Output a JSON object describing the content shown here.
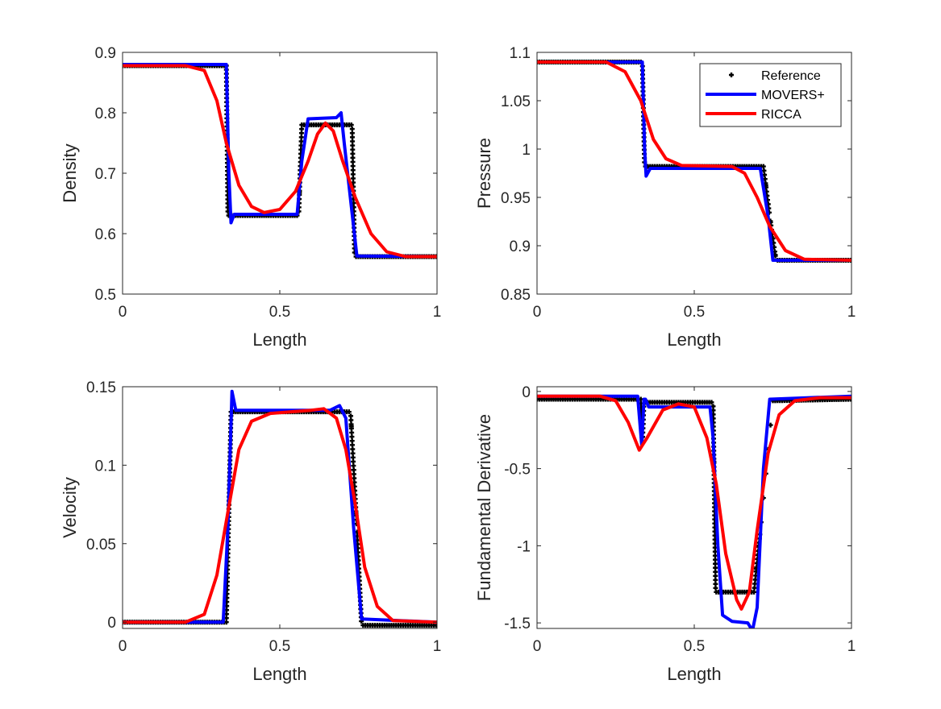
{
  "chart_data": [
    {
      "type": "line",
      "xlabel": "Length",
      "ylabel": "Density",
      "xlim": [
        0,
        1
      ],
      "ylim": [
        0.5,
        0.9
      ],
      "xticks": [
        "0",
        "0.5",
        "1"
      ],
      "xtick_values": [
        0,
        0.5,
        1
      ],
      "yticks": [
        "0.5",
        "0.6",
        "0.7",
        "0.8",
        "0.9"
      ],
      "ytick_values": [
        0.5,
        0.6,
        0.7,
        0.8,
        0.9
      ],
      "series": [
        {
          "name": "Reference",
          "style": "markers",
          "color": "#000000",
          "x": [
            0,
            0.33,
            0.335,
            0.56,
            0.57,
            0.73,
            0.738,
            1
          ],
          "y": [
            0.878,
            0.878,
            0.63,
            0.63,
            0.78,
            0.78,
            0.562,
            0.562
          ]
        },
        {
          "name": "MOVERS+",
          "style": "line",
          "color": "#0000FF",
          "x": [
            0,
            0.33,
            0.338,
            0.345,
            0.355,
            0.555,
            0.57,
            0.59,
            0.68,
            0.695,
            0.705,
            0.745,
            1
          ],
          "y": [
            0.88,
            0.88,
            0.7,
            0.618,
            0.632,
            0.632,
            0.72,
            0.79,
            0.792,
            0.8,
            0.75,
            0.563,
            0.562
          ]
        },
        {
          "name": "RICCA",
          "style": "line",
          "color": "#FF0000",
          "x": [
            0,
            0.2,
            0.26,
            0.3,
            0.33,
            0.37,
            0.41,
            0.45,
            0.5,
            0.55,
            0.59,
            0.62,
            0.645,
            0.67,
            0.7,
            0.74,
            0.79,
            0.84,
            0.9,
            1
          ],
          "y": [
            0.878,
            0.878,
            0.87,
            0.82,
            0.75,
            0.68,
            0.645,
            0.635,
            0.64,
            0.67,
            0.72,
            0.765,
            0.783,
            0.77,
            0.72,
            0.66,
            0.6,
            0.57,
            0.562,
            0.562
          ]
        }
      ]
    },
    {
      "type": "line",
      "xlabel": "Length",
      "ylabel": "Pressure",
      "xlim": [
        0,
        1
      ],
      "ylim": [
        0.85,
        1.1
      ],
      "xticks": [
        "0",
        "0.5",
        "1"
      ],
      "xtick_values": [
        0,
        0.5,
        1
      ],
      "yticks": [
        "0.85",
        "0.9",
        "0.95",
        "1",
        "1.05",
        "1.1"
      ],
      "ytick_values": [
        0.85,
        0.9,
        0.95,
        1,
        1.05,
        1.1
      ],
      "legend": {
        "placement": "top-right",
        "entries": [
          "Reference",
          "MOVERS+",
          "RICCA"
        ]
      },
      "series": [
        {
          "name": "Reference",
          "style": "markers",
          "color": "#000000",
          "x": [
            0,
            0.335,
            0.342,
            0.72,
            0.74,
            0.76,
            1
          ],
          "y": [
            1.09,
            1.09,
            0.982,
            0.982,
            0.93,
            0.885,
            0.885
          ]
        },
        {
          "name": "MOVERS+",
          "style": "line",
          "color": "#0000FF",
          "x": [
            0,
            0.335,
            0.342,
            0.347,
            0.36,
            0.71,
            0.735,
            0.75,
            1
          ],
          "y": [
            1.09,
            1.09,
            1.0,
            0.972,
            0.98,
            0.98,
            0.93,
            0.885,
            0.885
          ]
        },
        {
          "name": "RICCA",
          "style": "line",
          "color": "#FF0000",
          "x": [
            0,
            0.22,
            0.28,
            0.33,
            0.37,
            0.41,
            0.46,
            0.62,
            0.66,
            0.7,
            0.74,
            0.79,
            0.85,
            1
          ],
          "y": [
            1.09,
            1.09,
            1.08,
            1.05,
            1.01,
            0.99,
            0.983,
            0.982,
            0.975,
            0.95,
            0.92,
            0.895,
            0.886,
            0.885
          ]
        }
      ]
    },
    {
      "type": "line",
      "xlabel": "Length",
      "ylabel": "Velocity",
      "xlim": [
        0,
        1
      ],
      "ylim": [
        -0.004,
        0.15
      ],
      "xticks": [
        "0",
        "0.5",
        "1"
      ],
      "xtick_values": [
        0,
        0.5,
        1
      ],
      "yticks": [
        "0",
        "0.05",
        "0.1",
        "0.15"
      ],
      "ytick_values": [
        0,
        0.05,
        0.1,
        0.15
      ],
      "series": [
        {
          "name": "Reference",
          "style": "markers",
          "color": "#000000",
          "x": [
            0,
            0.33,
            0.345,
            0.725,
            0.745,
            0.76,
            1
          ],
          "y": [
            0,
            0,
            0.134,
            0.134,
            0.06,
            -0.002,
            -0.002
          ]
        },
        {
          "name": "MOVERS+",
          "style": "line",
          "color": "#0000FF",
          "x": [
            0,
            0.32,
            0.335,
            0.348,
            0.36,
            0.66,
            0.69,
            0.71,
            0.735,
            0.76,
            1
          ],
          "y": [
            0,
            0,
            0.06,
            0.147,
            0.135,
            0.135,
            0.138,
            0.13,
            0.06,
            0.002,
            0
          ]
        },
        {
          "name": "RICCA",
          "style": "line",
          "color": "#FF0000",
          "x": [
            0,
            0.2,
            0.26,
            0.3,
            0.335,
            0.37,
            0.41,
            0.47,
            0.6,
            0.64,
            0.68,
            0.71,
            0.74,
            0.77,
            0.81,
            0.86,
            1
          ],
          "y": [
            0,
            0,
            0.005,
            0.03,
            0.07,
            0.11,
            0.128,
            0.133,
            0.135,
            0.136,
            0.13,
            0.11,
            0.075,
            0.035,
            0.01,
            0.001,
            0
          ]
        }
      ]
    },
    {
      "type": "line",
      "xlabel": "Length",
      "ylabel": "Fundamental Derivative",
      "xlim": [
        0,
        1
      ],
      "ylim": [
        -1.536,
        0.031
      ],
      "xticks": [
        "0",
        "0.5",
        "1"
      ],
      "xtick_values": [
        0,
        0.5,
        1
      ],
      "yticks": [
        "-1.5",
        "-1",
        "-0.5",
        "0"
      ],
      "ytick_values": [
        -1.5,
        -1,
        -0.5,
        0
      ],
      "series": [
        {
          "name": "Reference",
          "style": "markers",
          "color": "#000000",
          "x": [
            0,
            0.33,
            0.335,
            0.34,
            0.56,
            0.568,
            0.69,
            0.71,
            0.75,
            1
          ],
          "y": [
            -0.05,
            -0.05,
            -0.35,
            -0.07,
            -0.07,
            -1.3,
            -1.3,
            -0.9,
            -0.06,
            -0.05
          ]
        },
        {
          "name": "MOVERS+",
          "style": "line",
          "color": "#0000FF",
          "x": [
            0,
            0.32,
            0.333,
            0.34,
            0.345,
            0.355,
            0.55,
            0.56,
            0.575,
            0.59,
            0.62,
            0.67,
            0.685,
            0.7,
            0.72,
            0.74,
            1
          ],
          "y": [
            -0.03,
            -0.03,
            -0.35,
            -0.05,
            -0.05,
            -0.1,
            -0.1,
            -0.3,
            -1.0,
            -1.45,
            -1.49,
            -1.5,
            -1.55,
            -1.4,
            -0.5,
            -0.05,
            -0.03
          ]
        },
        {
          "name": "RICCA",
          "style": "line",
          "color": "#FF0000",
          "x": [
            0,
            0.2,
            0.25,
            0.29,
            0.325,
            0.35,
            0.4,
            0.45,
            0.5,
            0.54,
            0.57,
            0.6,
            0.635,
            0.65,
            0.675,
            0.7,
            0.735,
            0.77,
            0.82,
            0.9,
            1
          ],
          "y": [
            -0.03,
            -0.03,
            -0.06,
            -0.2,
            -0.38,
            -0.3,
            -0.12,
            -0.08,
            -0.1,
            -0.3,
            -0.6,
            -1.05,
            -1.35,
            -1.41,
            -1.3,
            -0.9,
            -0.4,
            -0.15,
            -0.06,
            -0.04,
            -0.04
          ]
        }
      ]
    }
  ]
}
